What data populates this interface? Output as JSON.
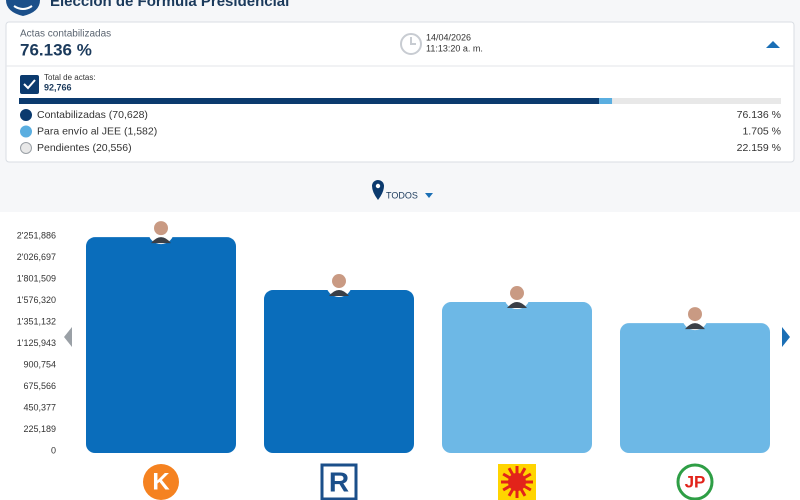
{
  "header": {
    "title": "Elección de Fórmula Presidencial"
  },
  "summary": {
    "actas_label": "Actas contabilizadas",
    "date": "14/04/2026",
    "time": "11:13:20 a. m.",
    "total_label": "Total de actas:",
    "total": "92,766",
    "items": [
      {
        "name": "Contabilizadas (70,628)",
        "percent": {
          "value": 76.136,
          "label": "76.136 %"
        },
        "color": "#0b3a6e"
      },
      {
        "name": "Para envío al JEE (1,582)",
        "percent": {
          "value": 1.705,
          "label": "1.705 %"
        },
        "color": "#5aaee0"
      },
      {
        "name": "Pendientes (20,556)",
        "percent": {
          "value": 22.159,
          "label": "22.159 %"
        },
        "color": "#e8e8e8"
      }
    ]
  },
  "filter": "TODOS",
  "chart_data": {
    "type": "bar",
    "categories": [
      "K",
      "R",
      null,
      "JP"
    ],
    "values": [
      2240000,
      1686000,
      1560000,
      1340000
    ],
    "colors": [
      "#0a6dbb",
      "#0a6dbb",
      "#6db8e6",
      "#6db8e6"
    ],
    "ylim": [
      0,
      2251886
    ],
    "yticks": [
      0,
      {
        "value": 225189,
        "label": "225,189"
      },
      {
        "value": 450377,
        "label": "450,377"
      },
      {
        "value": 675566,
        "label": "675,566"
      },
      {
        "value": 900754,
        "label": "900,754"
      },
      {
        "value": 1125943,
        "label": "1'125,943"
      },
      {
        "value": 1351132,
        "label": "1'351,132"
      },
      {
        "value": 1576320,
        "label": "1'576,320"
      },
      {
        "value": 1801509,
        "label": "1'801,509"
      },
      {
        "value": 2026697,
        "label": "2'026,697"
      },
      {
        "value": 2251886,
        "label": "2'251,886"
      }
    ]
  }
}
